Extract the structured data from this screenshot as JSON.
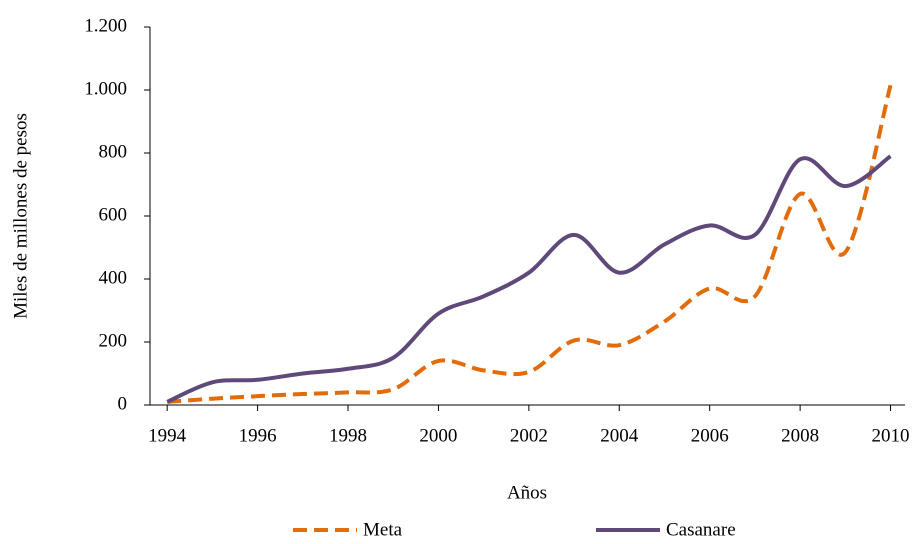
{
  "chart_data": {
    "type": "line",
    "x_label": "Años",
    "y_label": "Miles de millones de pesos",
    "x": [
      1994,
      1995,
      1996,
      1997,
      1998,
      1999,
      2000,
      2001,
      2002,
      2003,
      2004,
      2005,
      2006,
      2007,
      2008,
      2009,
      2010
    ],
    "xlim": [
      1993.62,
      2010.32
    ],
    "xticks": [
      1994,
      1996,
      1998,
      2000,
      2002,
      2004,
      2006,
      2008,
      2010
    ],
    "ylim": [
      0,
      1200
    ],
    "yticks": [
      0,
      200,
      400,
      600,
      800,
      {
        "value": 1000,
        "label": "1.000"
      },
      {
        "value": 1200,
        "label": "1.200"
      }
    ],
    "smooth": true,
    "series": [
      {
        "name": "Meta",
        "color": "#e36c0a",
        "dash": true,
        "values": [
          10,
          20,
          28,
          35,
          40,
          50,
          140,
          110,
          105,
          205,
          190,
          265,
          370,
          345,
          670,
          485,
          1015
        ]
      },
      {
        "name": "Casanare",
        "color": "#5f497a",
        "dash": false,
        "values": [
          10,
          72,
          80,
          100,
          115,
          150,
          290,
          345,
          420,
          540,
          420,
          510,
          570,
          540,
          780,
          695,
          790
        ]
      }
    ]
  }
}
